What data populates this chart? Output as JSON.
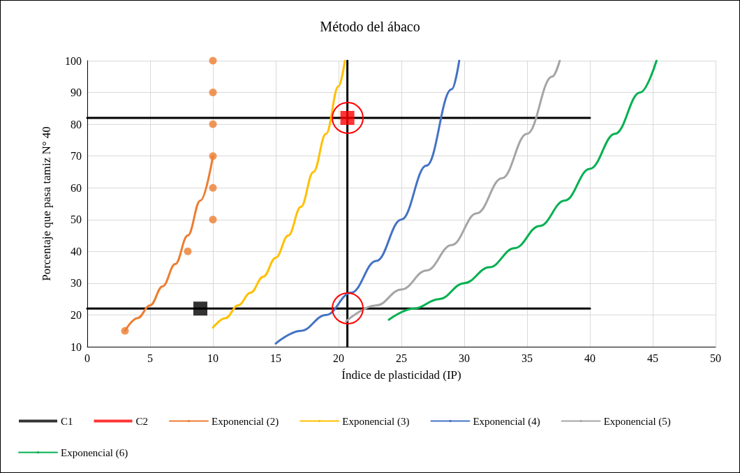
{
  "chart_data": {
    "type": "line",
    "title": "Método del ábaco",
    "xlabel": "Índice de plasticidad (IP)",
    "ylabel": "Porcentaje que pasa tamiz N° 40",
    "xlim": [
      0,
      50
    ],
    "xticks": [
      0,
      5,
      10,
      15,
      20,
      25,
      30,
      35,
      40,
      45,
      50
    ],
    "ylim": [
      10,
      100
    ],
    "yticks": [
      10,
      20,
      30,
      40,
      50,
      60,
      70,
      80,
      90,
      100
    ],
    "grid": true,
    "legend": "bottom",
    "series": [
      {
        "type": "line",
        "color": "#000000",
        "marker": "none",
        "x": [
          0,
          40
        ],
        "values": [
          22,
          22
        ]
      },
      {
        "type": "line",
        "color": "#000000",
        "marker": "none",
        "x": [
          0,
          40
        ],
        "values": [
          82,
          82
        ]
      },
      {
        "type": "line",
        "color": "#000000",
        "marker": "none",
        "x": [
          20.7,
          20.7
        ],
        "values": [
          10,
          100
        ]
      },
      {
        "type": "scatter",
        "color": "#ed7d31",
        "marker": "circle",
        "x": [
          3,
          8,
          10,
          10,
          10,
          10,
          10,
          10
        ],
        "values": [
          15,
          40,
          50,
          60,
          70,
          80,
          90,
          100
        ]
      },
      {
        "name": "C1",
        "type": "scatter",
        "color": "#000000",
        "marker": "square",
        "x": [
          9
        ],
        "values": [
          22
        ]
      },
      {
        "name": "C2",
        "type": "scatter",
        "color": "#ff0000",
        "marker": "square",
        "x": [
          20.7
        ],
        "values": [
          82
        ]
      },
      {
        "name": "Exponencial (2)",
        "color": "#ed7d31",
        "marker": "none",
        "x": [
          3,
          4,
          5,
          6,
          7,
          8,
          9,
          10
        ],
        "values": [
          15,
          19,
          23,
          29,
          36,
          45,
          56,
          70
        ]
      },
      {
        "name": "Exponencial (3)",
        "color": "#ffc000",
        "marker": "none",
        "x": [
          10,
          11,
          12,
          13,
          14,
          15,
          16,
          17,
          18,
          19,
          20,
          20.5
        ],
        "values": [
          16,
          19,
          23,
          27,
          32,
          38,
          45,
          54,
          65,
          77,
          92,
          100
        ]
      },
      {
        "name": "Exponencial (4)",
        "color": "#4472c4",
        "marker": "none",
        "x": [
          15,
          17,
          19,
          21,
          23,
          25,
          27,
          29,
          29.6
        ],
        "values": [
          11,
          15,
          20,
          27,
          37,
          50,
          67,
          91,
          100
        ]
      },
      {
        "name": "Exponencial (5)",
        "color": "#a5a5a5",
        "marker": "none",
        "x": [
          20.6,
          23,
          25,
          27,
          29,
          31,
          33,
          35,
          37,
          37.6
        ],
        "values": [
          18,
          23,
          28,
          34,
          42,
          52,
          63,
          77,
          95,
          100
        ]
      },
      {
        "name": "Exponencial (6)",
        "color": "#00b050",
        "marker": "none",
        "x": [
          24,
          26,
          28,
          30,
          32,
          34,
          36,
          38,
          40,
          42,
          44,
          45.3
        ],
        "values": [
          18.5,
          22,
          25,
          30,
          35,
          41,
          48,
          56,
          66,
          77,
          90,
          100
        ]
      }
    ]
  }
}
